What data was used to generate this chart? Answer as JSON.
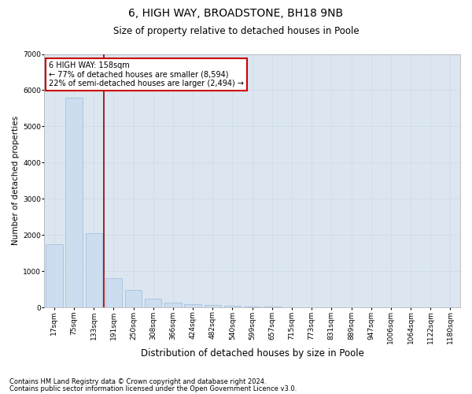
{
  "title1": "6, HIGH WAY, BROADSTONE, BH18 9NB",
  "title2": "Size of property relative to detached houses in Poole",
  "xlabel": "Distribution of detached houses by size in Poole",
  "ylabel": "Number of detached properties",
  "bar_labels": [
    "17sqm",
    "75sqm",
    "133sqm",
    "191sqm",
    "250sqm",
    "308sqm",
    "366sqm",
    "424sqm",
    "482sqm",
    "540sqm",
    "599sqm",
    "657sqm",
    "715sqm",
    "773sqm",
    "831sqm",
    "889sqm",
    "947sqm",
    "1006sqm",
    "1064sqm",
    "1122sqm",
    "1180sqm"
  ],
  "bar_values": [
    1750,
    5800,
    2050,
    800,
    480,
    240,
    130,
    80,
    65,
    45,
    25,
    18,
    12,
    8,
    6,
    4,
    3,
    2,
    2,
    1,
    1
  ],
  "bar_color": "#ccddf0",
  "bar_edge_color": "#9bbbd8",
  "vline_x_pos": 2.5,
  "vline_color": "#990000",
  "ylim": [
    0,
    7000
  ],
  "yticks": [
    0,
    1000,
    2000,
    3000,
    4000,
    5000,
    6000,
    7000
  ],
  "annotation_text": "6 HIGH WAY: 158sqm\n← 77% of detached houses are smaller (8,594)\n22% of semi-detached houses are larger (2,494) →",
  "annotation_box_facecolor": "#ffffff",
  "annotation_box_edgecolor": "#cc0000",
  "footnote1": "Contains HM Land Registry data © Crown copyright and database right 2024.",
  "footnote2": "Contains public sector information licensed under the Open Government Licence v3.0.",
  "grid_color": "#d0dce8",
  "background_color": "#dce6f1",
  "title1_fontsize": 10,
  "title2_fontsize": 8.5,
  "ylabel_fontsize": 7.5,
  "xlabel_fontsize": 8.5,
  "tick_fontsize": 6.5,
  "annot_fontsize": 7,
  "footnote_fontsize": 6
}
